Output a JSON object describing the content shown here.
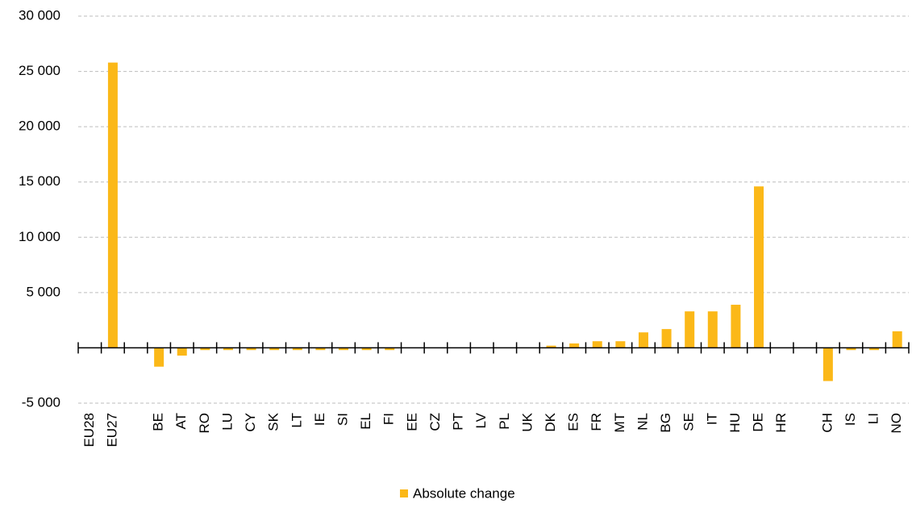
{
  "chart_data": {
    "type": "bar",
    "categories": [
      "EU28",
      "EU27",
      null,
      "BE",
      "AT",
      "RO",
      "LU",
      "CY",
      "SK",
      "LT",
      "IE",
      "SI",
      "EL",
      "FI",
      "EE",
      "CZ",
      "PT",
      "LV",
      "PL",
      "UK",
      "DK",
      "ES",
      "FR",
      "MT",
      "NL",
      "BG",
      "SE",
      "IT",
      "HU",
      "DE",
      "HR",
      null,
      "CH",
      "IS",
      "LI",
      "NO"
    ],
    "series": [
      {
        "name": "Absolute change",
        "color": "#fbb818",
        "values": [
          null,
          25800,
          null,
          -1700,
          -700,
          -200,
          -200,
          -200,
          -200,
          -200,
          -200,
          -200,
          -200,
          -200,
          0,
          0,
          0,
          0,
          0,
          0,
          200,
          400,
          600,
          600,
          1400,
          1700,
          3300,
          3300,
          3900,
          14600,
          0,
          null,
          -3000,
          -200,
          -200,
          1500
        ]
      }
    ],
    "ylim": [
      -5000,
      30000
    ],
    "yticks": [
      {
        "value": -5000,
        "label": "-5 000"
      },
      {
        "value": 5000,
        "label": "5 000"
      },
      {
        "value": 10000,
        "label": "10 000"
      },
      {
        "value": 15000,
        "label": "15 000"
      },
      {
        "value": 20000,
        "label": "20 000"
      },
      {
        "value": 25000,
        "label": "25 000"
      },
      {
        "value": 30000,
        "label": "30 000"
      }
    ],
    "grid": true,
    "legend": "bottom"
  }
}
